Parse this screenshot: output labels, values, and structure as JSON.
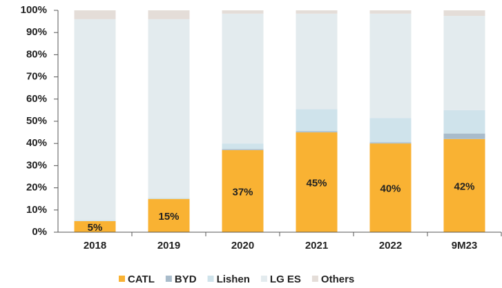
{
  "chart_data": {
    "type": "stacked_bar",
    "categories": [
      "2018",
      "2019",
      "2020",
      "2021",
      "2022",
      "9M23"
    ],
    "series": [
      {
        "name": "CATL",
        "color": "#f9b233",
        "values": [
          5,
          15,
          37,
          45,
          40,
          42
        ],
        "value_labels": [
          "5%",
          "15%",
          "37%",
          "45%",
          "40%",
          "42%"
        ]
      },
      {
        "name": "BYD",
        "color": "#a9bccb",
        "values": [
          0,
          0,
          0.5,
          0.5,
          0.5,
          2.5
        ]
      },
      {
        "name": "Lishen",
        "color": "#cfe3eb",
        "values": [
          0.5,
          0.5,
          2.5,
          10,
          11,
          10.5
        ]
      },
      {
        "name": "LG ES",
        "color": "#e3ebee",
        "values": [
          90.5,
          80.5,
          58.5,
          43,
          47,
          42.5
        ]
      },
      {
        "name": "Others",
        "color": "#e4ddd8",
        "values": [
          4,
          4,
          1.5,
          1.5,
          1.5,
          2.5
        ]
      }
    ],
    "ylim": [
      0,
      100
    ],
    "yticks": [
      {
        "value": 0,
        "label": "0%"
      },
      {
        "value": 10,
        "label": "10%"
      },
      {
        "value": 20,
        "label": "20%"
      },
      {
        "value": 30,
        "label": "30%"
      },
      {
        "value": 40,
        "label": "40%"
      },
      {
        "value": 50,
        "label": "50%"
      },
      {
        "value": 60,
        "label": "60%"
      },
      {
        "value": 70,
        "label": "70%"
      },
      {
        "value": 80,
        "label": "80%"
      },
      {
        "value": 90,
        "label": "90%"
      },
      {
        "value": 100,
        "label": "100%"
      }
    ],
    "legend": "bottom"
  }
}
